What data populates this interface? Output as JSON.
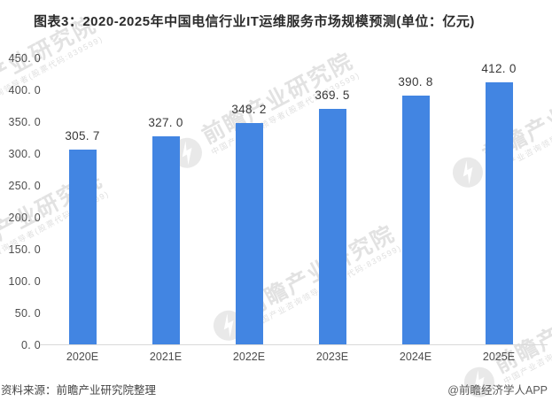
{
  "title": "图表3：2020-2025年中国电信行业IT运维服务市场规模预测(单位：亿元)",
  "chart_data": {
    "type": "bar",
    "title": "图表3：2020-2025年中国电信行业IT运维服务市场规模预测(单位：亿元)",
    "categories": [
      "2020E",
      "2021E",
      "2022E",
      "2023E",
      "2024E",
      "2025E"
    ],
    "values": [
      305.7,
      327.0,
      348.2,
      369.5,
      390.8,
      412.0
    ],
    "value_labels": [
      "305. 7",
      "327. 0",
      "348. 2",
      "369. 5",
      "390. 8",
      "412. 0"
    ],
    "unit": "亿元",
    "xlabel": "",
    "ylabel": "",
    "ylim": [
      0,
      450
    ],
    "ytick_step": 50,
    "yticks": [
      "450. 0",
      "400. 0",
      "350. 0",
      "300. 0",
      "250. 0",
      "200. 0",
      "150. 0",
      "100. 0",
      "50. 0",
      "0. 0"
    ],
    "grid": false,
    "legend": null,
    "bar_color": "#4285E2"
  },
  "footer": {
    "source": "资料来源：前瞻产业研究院整理",
    "brand": "@前瞻经济学人APP"
  },
  "watermark": {
    "large_text": "前瞻产业研究院",
    "small_text": "中国产业咨询领导者(股票代码:839599)",
    "logo_icon": "qianzhan-logo",
    "color": "#e2e2e2"
  },
  "colors": {
    "bar": "#4285E2",
    "axis_line": "#d9d9d9",
    "title_text": "#2b2b2b",
    "tick_text": "#4d4d4d",
    "value_text": "#383838",
    "footer_text": "#454545"
  }
}
